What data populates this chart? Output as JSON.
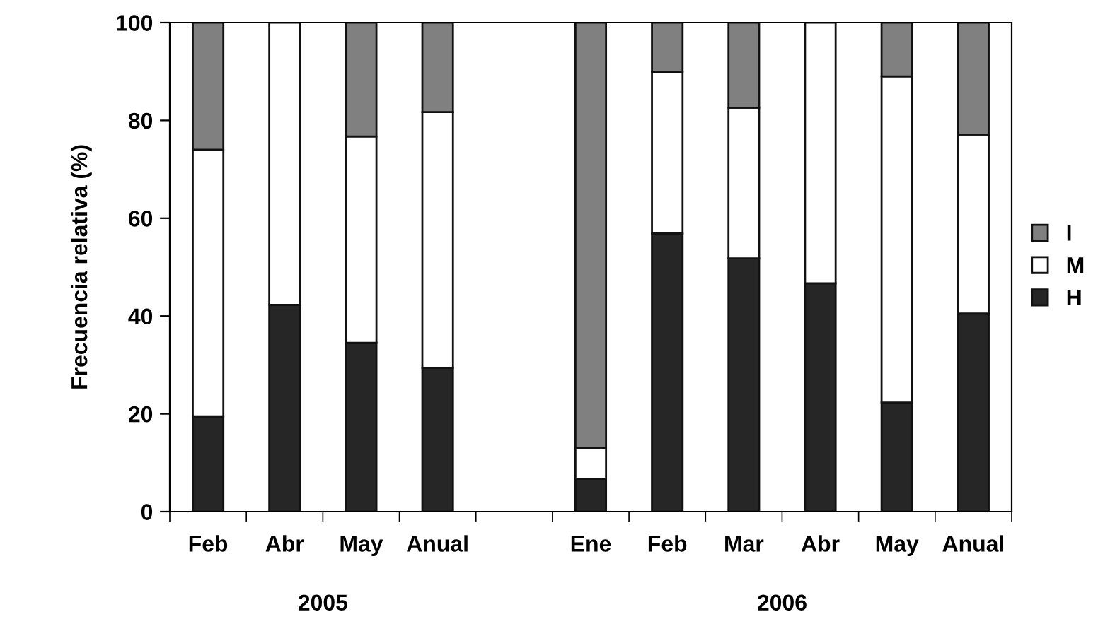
{
  "chart_data": {
    "type": "bar",
    "stacked": true,
    "ylabel": "Frecuencia relativa (%)",
    "categories": [
      "Feb",
      "Abr",
      "May",
      "Anual",
      null,
      "Ene",
      "Feb",
      "Mar",
      "Abr",
      "May",
      "Anual"
    ],
    "series": [
      {
        "name": "H",
        "color": "#262626",
        "values": [
          19.5,
          42.3,
          34.5,
          29.4,
          null,
          6.7,
          56.9,
          51.8,
          46.7,
          22.3,
          40.5
        ]
      },
      {
        "name": "M",
        "color": "#ffffff",
        "values": [
          54.5,
          57.7,
          42.2,
          52.3,
          null,
          6.3,
          33.0,
          30.8,
          53.3,
          66.7,
          36.6
        ]
      },
      {
        "name": "I",
        "color": "#808080",
        "values": [
          26.0,
          null,
          23.3,
          18.3,
          null,
          87.0,
          10.1,
          17.4,
          null,
          11.0,
          22.9
        ]
      }
    ],
    "ylim": [
      0,
      100
    ],
    "yticks": [
      0,
      20,
      40,
      60,
      80,
      100
    ],
    "grid": false,
    "legend": "right",
    "annotations": [
      "2005",
      "2006"
    ]
  }
}
